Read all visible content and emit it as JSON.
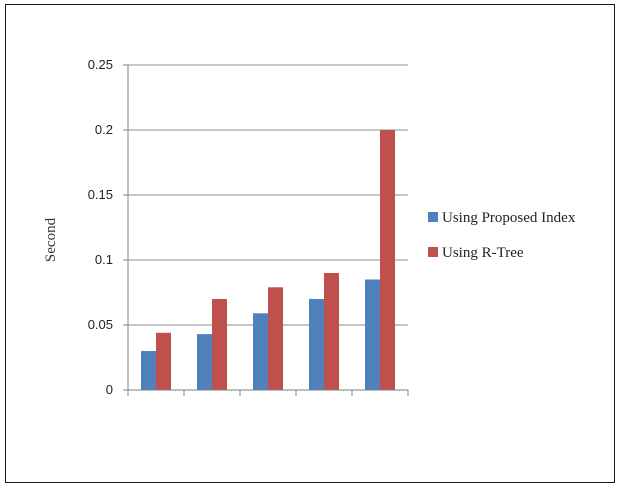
{
  "chart_data": {
    "type": "bar",
    "ylabel": "Second",
    "xlabel": "",
    "ylim": [
      0,
      0.25
    ],
    "yticks": [
      0,
      0.05,
      0.1,
      0.15,
      0.2,
      0.25
    ],
    "ytick_labels": [
      "0",
      "0.05",
      "0.1",
      "0.15",
      "0.2",
      "0.25"
    ],
    "grid": true,
    "legend_position": "right",
    "categories": [
      "",
      "",
      "",
      "",
      ""
    ],
    "series": [
      {
        "name": "Using Proposed Index",
        "color": "#4f81bd",
        "values": [
          0.03,
          0.043,
          0.059,
          0.07,
          0.085
        ]
      },
      {
        "name": "Using R-Tree",
        "color": "#c0504d",
        "values": [
          0.044,
          0.07,
          0.079,
          0.09,
          0.2
        ]
      }
    ]
  }
}
